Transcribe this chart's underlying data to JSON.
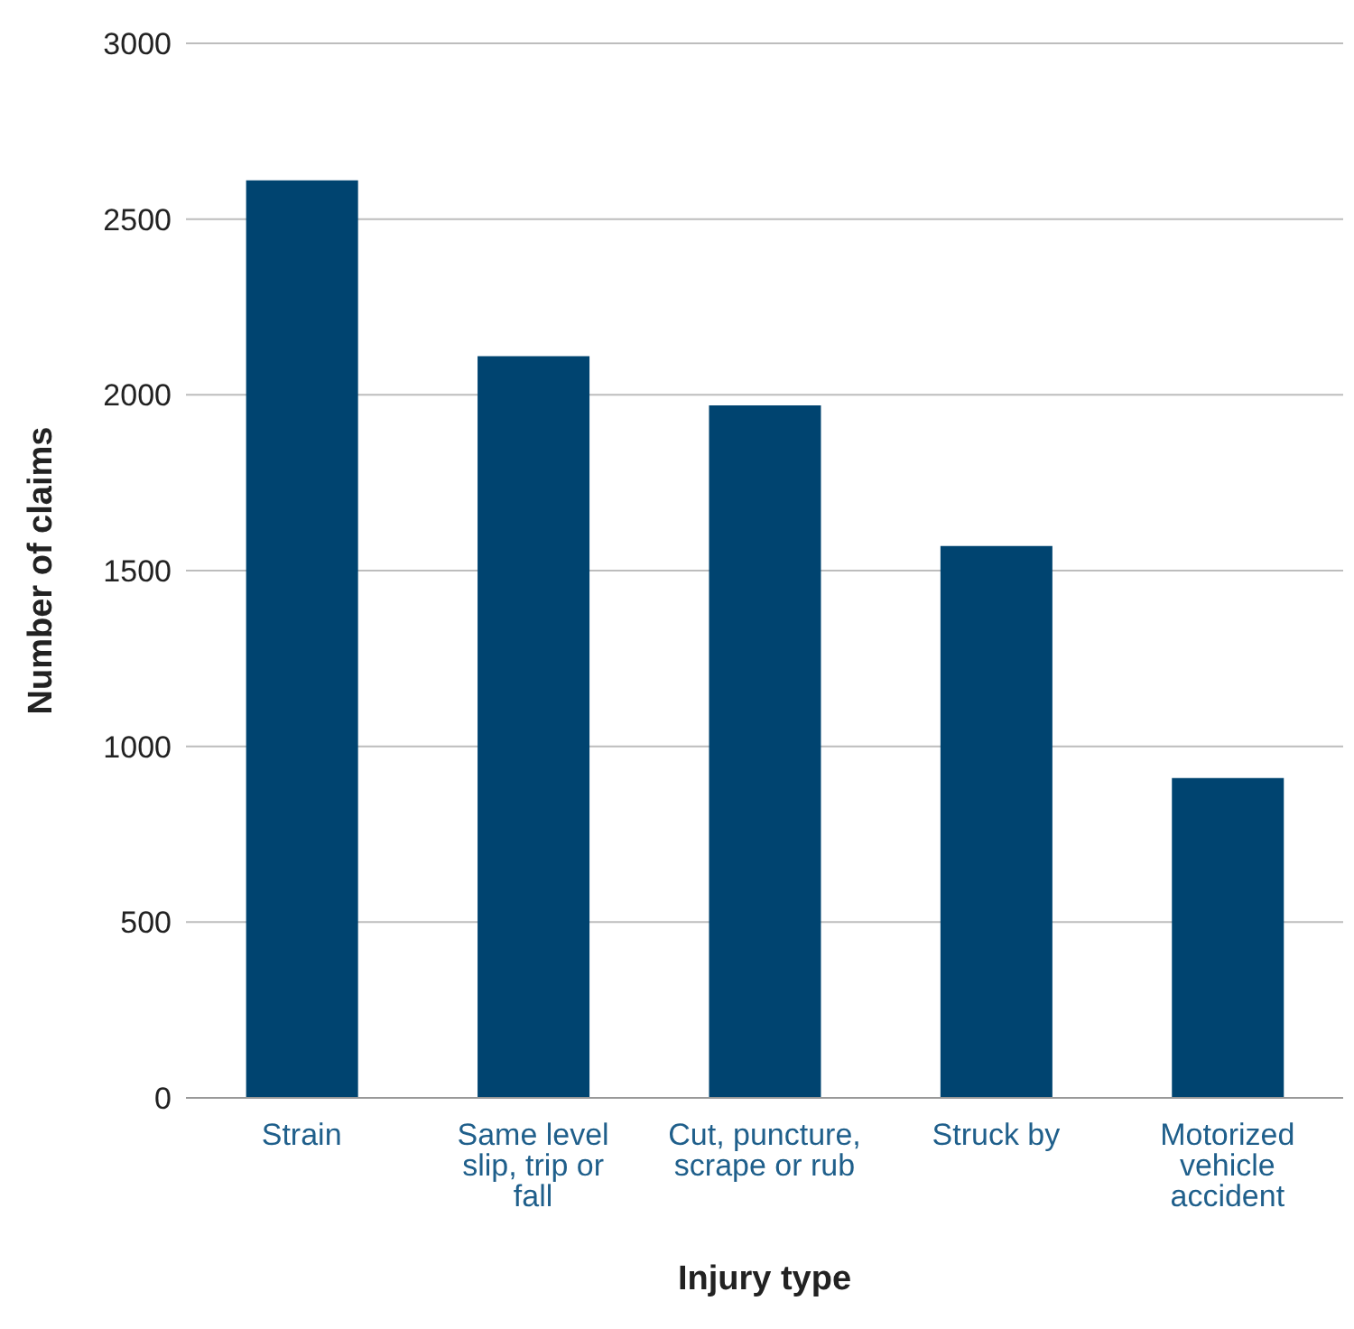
{
  "chart_data": {
    "type": "bar",
    "xlabel": "Injury type",
    "ylabel": "Number of claims",
    "categories": [
      "Strain",
      "Same level slip, trip or fall",
      "Cut, puncture, scrape or rub",
      "Struck by",
      "Motorized vehicle accident"
    ],
    "values": [
      2610,
      2110,
      1970,
      1570,
      910
    ],
    "color": "#004470",
    "ylim": [
      0,
      3000
    ],
    "yticks": [
      0,
      500,
      1000,
      1500,
      2000,
      2500,
      3000
    ],
    "grid": "y"
  }
}
